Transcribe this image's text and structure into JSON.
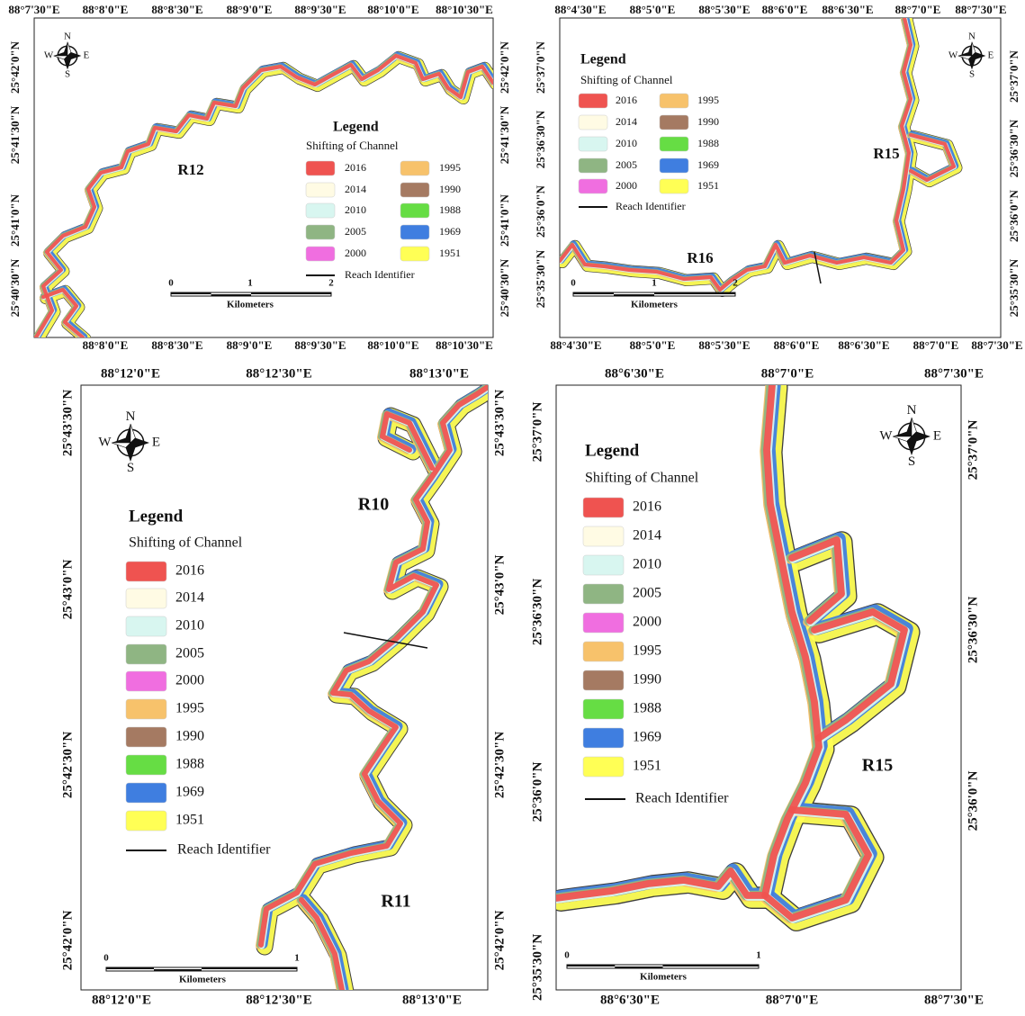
{
  "legend": {
    "title": "Legend",
    "subtitle": "Shifting of Channel",
    "reach_identifier": "Reach Identifier",
    "items": [
      {
        "label": "2016",
        "color": "#ef5350"
      },
      {
        "label": "2014",
        "color": "#fffbe4"
      },
      {
        "label": "2010",
        "color": "#d8f6f0"
      },
      {
        "label": "2005",
        "color": "#8fb583"
      },
      {
        "label": "2000",
        "color": "#f06ee0"
      },
      {
        "label": "1995",
        "color": "#f7c26b"
      },
      {
        "label": "1990",
        "color": "#a57a62"
      },
      {
        "label": "1988",
        "color": "#66dd44"
      },
      {
        "label": "1969",
        "color": "#3f7ee0"
      },
      {
        "label": "1951",
        "color": "#ffff55"
      }
    ]
  },
  "compass": {
    "n": "N",
    "s": "S",
    "e": "E",
    "w": "W"
  },
  "scale": {
    "unit": "Kilometers"
  },
  "panels": [
    {
      "top_labels": [
        "88°7'30\"E",
        "88°8'0\"E",
        "88°8'30\"E",
        "88°9'0\"E",
        "88°9'30\"E",
        "88°10'0\"E",
        "88°10'30\"E"
      ],
      "bottom_labels": [
        "88°8'0\"E",
        "88°8'30\"E",
        "88°9'0\"E",
        "88°9'30\"E",
        "88°10'0\"E",
        "88°10'30\"E"
      ],
      "left_labels": [
        "25°42'0\"N",
        "25°41'30\"N",
        "25°41'0\"N",
        "25°40'30\"N"
      ],
      "right_labels": [
        "25°42'0\"N",
        "25°41'30\"N",
        "25°41'0\"N",
        "25°40'30\"N"
      ],
      "reaches": [
        "R12"
      ],
      "scale_ticks": [
        "0",
        "1",
        "2"
      ]
    },
    {
      "top_labels": [
        "88°4'30\"E",
        "88°5'0\"E",
        "88°5'30\"E",
        "88°6'0\"E",
        "88°6'30\"E",
        "88°7'0\"E",
        "88°7'30\"E"
      ],
      "bottom_labels": [
        "88°4'30\"E",
        "88°5'0\"E",
        "88°5'30\"E",
        "88°6'0\"E",
        "88°6'30\"E",
        "88°7'0\"E",
        "88°7'30\"E"
      ],
      "left_labels": [
        "25°37'0\"N",
        "25°36'30\"N",
        "25°36'0\"N",
        "25°35'30\"N"
      ],
      "right_labels": [
        "25°37'0\"N",
        "25°36'30\"N",
        "25°36'0\"N",
        "25°35'30\"N"
      ],
      "reaches": [
        "R15",
        "R16"
      ],
      "scale_ticks": [
        "0",
        "1",
        "2"
      ]
    },
    {
      "top_labels": [
        "88°12'0\"E",
        "88°12'30\"E",
        "88°13'0\"E"
      ],
      "bottom_labels": [
        "88°12'0\"E",
        "88°12'30\"E",
        "88°13'0\"E"
      ],
      "left_labels": [
        "25°43'30\"N",
        "25°43'0\"N",
        "25°42'30\"N",
        "25°42'0\"N"
      ],
      "right_labels": [
        "25°43'30\"N",
        "25°43'0\"N",
        "25°42'30\"N",
        "25°42'0\"N"
      ],
      "reaches": [
        "R10",
        "R11"
      ],
      "scale_ticks": [
        "0",
        "1"
      ]
    },
    {
      "top_labels": [
        "88°6'30\"E",
        "88°7'0\"E",
        "88°7'30\"E"
      ],
      "bottom_labels": [
        "88°6'30\"E",
        "88°7'0\"E",
        "88°7'30\"E"
      ],
      "left_labels": [
        "25°37'0\"N",
        "25°36'30\"N",
        "25°36'0\"N",
        "25°35'30\"N"
      ],
      "right_labels": [
        "25°37'0\"N",
        "25°36'30\"N",
        "25°36'0\"N"
      ],
      "reaches": [
        "R15"
      ],
      "scale_ticks": [
        "0",
        "1"
      ]
    }
  ]
}
